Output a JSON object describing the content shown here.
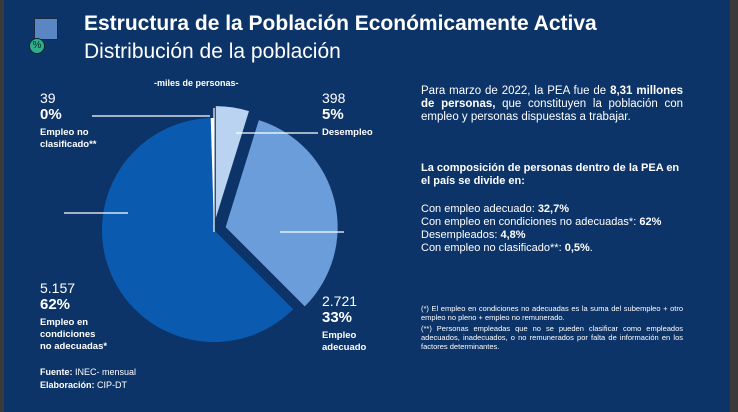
{
  "header": {
    "title": "Estructura de la Población Económicamente Activa",
    "subtitle": "Distribución de la población"
  },
  "chart_data": {
    "type": "pie",
    "unit": "-miles de personas-",
    "slices": [
      {
        "name": "Desempleo",
        "value": 398,
        "pct": "5%",
        "color": "#b9d3f0",
        "label_lines": [
          "Desempleo"
        ]
      },
      {
        "name": "Empleo adecuado",
        "value": 2721,
        "pct": "33%",
        "color": "#6c9ddb",
        "label_lines": [
          "Empleo",
          "adecuado"
        ]
      },
      {
        "name": "Empleo en condiciones no adecuadas*",
        "value": 5157,
        "pct": "62%",
        "color": "#0a5bb0",
        "label_lines": [
          "Empleo en",
          "condiciones",
          "no adecuadas*"
        ]
      },
      {
        "name": "Empleo no clasificado**",
        "value": 39,
        "pct": "0%",
        "color": "#ffffff",
        "label_lines": [
          "Empleo no",
          "clasificado**"
        ]
      }
    ],
    "value_labels": [
      "398",
      "2.721",
      "5.157",
      "39"
    ]
  },
  "text": {
    "intro_a": "Para  marzo de 2022, la PEA fue de ",
    "intro_b": "8,31 millones de personas,",
    "intro_c": " que constituyen la población con empleo y personas dispuestas a trabajar.",
    "comp": "La composición de personas dentro de la PEA en el país se divide en:",
    "items": [
      [
        "Con empleo adecuado: ",
        "32,7%"
      ],
      [
        "Con empleo en condiciones no adecuadas*: ",
        "62%"
      ],
      [
        "Desempleados: ",
        "4,8%"
      ],
      [
        "Con empleo no clasificado**: ",
        "0,5%"
      ]
    ],
    "note1": "(*) El empleo en condiciones no adecuadas es la suma del subempleo + otro empleo no pleno + empleo no remunerado.",
    "note2": "(**) Personas empleadas que no se pueden clasificar como empleados adecuados, inadecuados, o no remunerados por falta de información en los factores determinantes.",
    "source_label": "Fuente:",
    "source": " INEC- mensual",
    "elab_label": "Elaboración:",
    "elab": " CIP-DT"
  },
  "colors": {
    "background": "#0d3468"
  }
}
